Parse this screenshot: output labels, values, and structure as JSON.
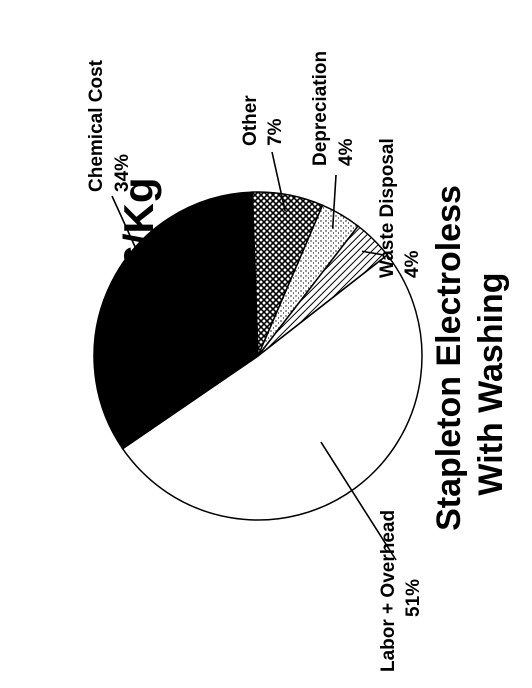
{
  "chart_data": {
    "type": "pie",
    "title": "Stapleton Electroless",
    "subtitle": "With Washing",
    "total_label": "$546/Kg",
    "slices": [
      {
        "label": "Other",
        "value": 7,
        "value_label": "7%",
        "fill": "crosshatch"
      },
      {
        "label": "Depreciation",
        "value": 4,
        "value_label": "4%",
        "fill": "stipple"
      },
      {
        "label": "Waste Disposal",
        "value": 4,
        "value_label": "4%",
        "fill": "diagonal-hatch"
      },
      {
        "label": "Labor + Overhead",
        "value": 51,
        "value_label": "51%",
        "fill": "white"
      },
      {
        "label": "Chemical Cost",
        "value": 34,
        "value_label": "34%",
        "fill": "black"
      }
    ]
  },
  "colors": {
    "ink": "#000000",
    "paper": "#ffffff"
  }
}
